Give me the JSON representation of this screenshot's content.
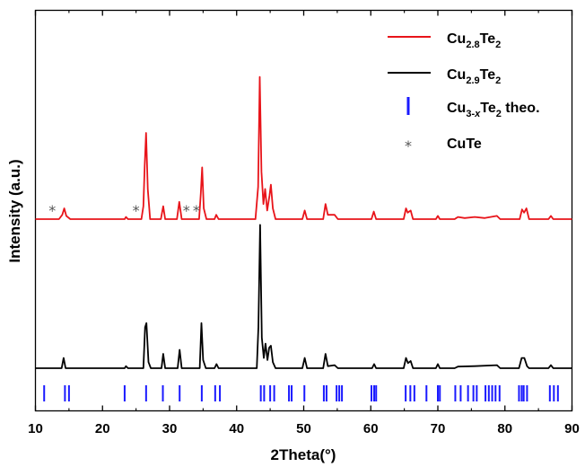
{
  "chart_data": {
    "type": "line",
    "xlabel": "2Theta(°)",
    "ylabel": "Intensity (a.u.)",
    "xlim": [
      10,
      90
    ],
    "x_ticks": [
      10,
      20,
      30,
      40,
      50,
      60,
      70,
      80,
      90
    ],
    "y_ticks_shown": false,
    "series": [
      {
        "name": "Cu2.8Te2",
        "legend_parts": [
          "Cu",
          "2.8",
          "Te",
          "2"
        ],
        "color": "#e8141a",
        "baseline": 0.0,
        "points": [
          [
            10,
            0.0
          ],
          [
            13.5,
            0.0
          ],
          [
            14.0,
            0.02
          ],
          [
            14.3,
            0.05
          ],
          [
            14.6,
            0.015
          ],
          [
            15.2,
            0.0
          ],
          [
            20,
            0.0
          ],
          [
            23.3,
            0.0
          ],
          [
            23.5,
            0.01
          ],
          [
            23.8,
            0.0
          ],
          [
            25.8,
            0.0
          ],
          [
            26.1,
            0.06
          ],
          [
            26.3,
            0.25
          ],
          [
            26.5,
            0.4
          ],
          [
            26.75,
            0.14
          ],
          [
            27.1,
            0.0
          ],
          [
            28.7,
            0.0
          ],
          [
            29.05,
            0.06
          ],
          [
            29.35,
            0.0
          ],
          [
            31.1,
            0.0
          ],
          [
            31.45,
            0.08
          ],
          [
            31.8,
            0.0
          ],
          [
            34.4,
            0.0
          ],
          [
            34.65,
            0.12
          ],
          [
            34.85,
            0.24
          ],
          [
            35.1,
            0.05
          ],
          [
            35.5,
            0.0
          ],
          [
            36.7,
            0.0
          ],
          [
            36.95,
            0.02
          ],
          [
            37.3,
            0.0
          ],
          [
            42.8,
            0.0
          ],
          [
            43.2,
            0.15
          ],
          [
            43.45,
            0.66
          ],
          [
            43.7,
            0.22
          ],
          [
            44.0,
            0.07
          ],
          [
            44.25,
            0.14
          ],
          [
            44.55,
            0.04
          ],
          [
            44.9,
            0.11
          ],
          [
            45.1,
            0.16
          ],
          [
            45.4,
            0.05
          ],
          [
            45.8,
            0.0
          ],
          [
            49.8,
            0.0
          ],
          [
            50.15,
            0.04
          ],
          [
            50.5,
            0.0
          ],
          [
            52.9,
            0.0
          ],
          [
            53.25,
            0.07
          ],
          [
            53.6,
            0.02
          ],
          [
            54.6,
            0.02
          ],
          [
            55.1,
            0.0
          ],
          [
            60.1,
            0.0
          ],
          [
            60.45,
            0.035
          ],
          [
            60.8,
            0.0
          ],
          [
            64.9,
            0.0
          ],
          [
            65.25,
            0.05
          ],
          [
            65.5,
            0.03
          ],
          [
            65.95,
            0.04
          ],
          [
            66.3,
            0.0
          ],
          [
            69.7,
            0.0
          ],
          [
            70.0,
            0.015
          ],
          [
            70.3,
            0.0
          ],
          [
            72.5,
            0.0
          ],
          [
            73.0,
            0.01
          ],
          [
            74.0,
            0.005
          ],
          [
            75.5,
            0.01
          ],
          [
            77.0,
            0.005
          ],
          [
            78.8,
            0.015
          ],
          [
            79.3,
            0.0
          ],
          [
            82.2,
            0.0
          ],
          [
            82.55,
            0.045
          ],
          [
            82.85,
            0.03
          ],
          [
            83.2,
            0.05
          ],
          [
            83.6,
            0.0
          ],
          [
            86.5,
            0.0
          ],
          [
            86.85,
            0.015
          ],
          [
            87.2,
            0.0
          ],
          [
            90,
            0.0
          ]
        ]
      },
      {
        "name": "Cu2.9Te2",
        "legend_parts": [
          "Cu",
          "2.9",
          "Te",
          "2"
        ],
        "color": "#000000",
        "baseline": 0.0,
        "points": [
          [
            10,
            0.0
          ],
          [
            13.9,
            0.0
          ],
          [
            14.2,
            0.05
          ],
          [
            14.5,
            0.0
          ],
          [
            23.3,
            0.0
          ],
          [
            23.5,
            0.01
          ],
          [
            23.8,
            0.0
          ],
          [
            26.1,
            0.0
          ],
          [
            26.35,
            0.2
          ],
          [
            26.55,
            0.22
          ],
          [
            26.85,
            0.03
          ],
          [
            27.2,
            0.0
          ],
          [
            28.8,
            0.0
          ],
          [
            29.05,
            0.07
          ],
          [
            29.35,
            0.0
          ],
          [
            31.2,
            0.0
          ],
          [
            31.5,
            0.09
          ],
          [
            31.8,
            0.0
          ],
          [
            34.5,
            0.0
          ],
          [
            34.75,
            0.22
          ],
          [
            35.0,
            0.04
          ],
          [
            35.4,
            0.0
          ],
          [
            36.7,
            0.0
          ],
          [
            37.0,
            0.02
          ],
          [
            37.3,
            0.0
          ],
          [
            43.0,
            0.0
          ],
          [
            43.25,
            0.2
          ],
          [
            43.5,
            0.7
          ],
          [
            43.75,
            0.15
          ],
          [
            44.05,
            0.05
          ],
          [
            44.3,
            0.12
          ],
          [
            44.6,
            0.04
          ],
          [
            44.85,
            0.1
          ],
          [
            45.1,
            0.11
          ],
          [
            45.4,
            0.03
          ],
          [
            45.8,
            0.0
          ],
          [
            49.8,
            0.0
          ],
          [
            50.15,
            0.05
          ],
          [
            50.5,
            0.0
          ],
          [
            52.9,
            0.0
          ],
          [
            53.25,
            0.07
          ],
          [
            53.6,
            0.01
          ],
          [
            54.6,
            0.015
          ],
          [
            55.1,
            0.0
          ],
          [
            60.2,
            0.0
          ],
          [
            60.5,
            0.02
          ],
          [
            60.8,
            0.0
          ],
          [
            64.9,
            0.0
          ],
          [
            65.25,
            0.05
          ],
          [
            65.55,
            0.025
          ],
          [
            65.95,
            0.035
          ],
          [
            66.3,
            0.0
          ],
          [
            69.7,
            0.0
          ],
          [
            70.0,
            0.02
          ],
          [
            70.3,
            0.0
          ],
          [
            72.5,
            0.0
          ],
          [
            73.0,
            0.008
          ],
          [
            75.5,
            0.01
          ],
          [
            78.8,
            0.015
          ],
          [
            79.3,
            0.0
          ],
          [
            82.1,
            0.0
          ],
          [
            82.5,
            0.05
          ],
          [
            82.9,
            0.05
          ],
          [
            83.3,
            0.01
          ],
          [
            83.6,
            0.0
          ],
          [
            86.5,
            0.0
          ],
          [
            86.85,
            0.015
          ],
          [
            87.2,
            0.0
          ],
          [
            90,
            0.0
          ]
        ]
      }
    ],
    "reference": {
      "name": "Cu3-xTe2 theo.",
      "legend_parts": [
        "Cu",
        "3-x",
        "Te",
        "2",
        " theo."
      ],
      "color": "#1a1aff",
      "positions": [
        11.3,
        14.4,
        15.0,
        23.3,
        26.5,
        29.0,
        31.5,
        34.8,
        36.8,
        37.5,
        43.6,
        44.1,
        45.0,
        45.6,
        47.8,
        48.2,
        50.1,
        53.0,
        53.4,
        54.9,
        55.3,
        55.7,
        60.1,
        60.5,
        60.8,
        65.2,
        65.9,
        66.5,
        68.3,
        70.0,
        70.3,
        72.6,
        73.4,
        74.5,
        75.3,
        75.8,
        77.1,
        77.6,
        78.1,
        78.6,
        79.2,
        82.1,
        82.5,
        82.8,
        83.3,
        86.7,
        87.3,
        87.9
      ]
    },
    "impurity": {
      "name": "CuTe",
      "symbol": "*",
      "positions": [
        12.5,
        25.0,
        32.5,
        34.0
      ]
    },
    "legend": {
      "placement": "top-right"
    }
  }
}
